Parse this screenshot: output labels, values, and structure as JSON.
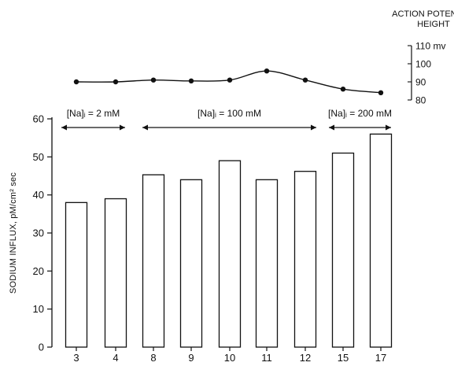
{
  "chart_data": [
    {
      "type": "bar",
      "categories": [
        "3",
        "4",
        "8",
        "9",
        "10",
        "11",
        "12",
        "15",
        "17"
      ],
      "values": [
        38,
        39,
        45.3,
        44,
        49,
        44,
        46.2,
        51,
        56
      ],
      "ylabel": "SODIUM INFLUX, pM/cm² sec",
      "xlabel": "",
      "yticks": [
        "0",
        "10",
        "20",
        "30",
        "40",
        "50",
        "60"
      ],
      "ylim": [
        0,
        60
      ],
      "bar_fill": "#ffffff",
      "stroke": "#111111",
      "grid": false,
      "ranges": [
        {
          "label": "[Na]ᵢ = 2 mM",
          "from": "3",
          "to": "4"
        },
        {
          "label": "[Na]ᵢ = 100 mM",
          "from": "8",
          "to": "12"
        },
        {
          "label": "[Na]ᵢ = 200 mM",
          "from": "15",
          "to": "17"
        }
      ]
    },
    {
      "type": "line",
      "title_lines": [
        "ACTION POTENTIAL",
        "HEIGHT"
      ],
      "categories": [
        "3",
        "4",
        "8",
        "9",
        "10",
        "11",
        "12",
        "15",
        "17"
      ],
      "values": [
        90,
        90,
        91,
        90.5,
        91,
        96,
        91,
        86,
        84
      ],
      "yticks": [
        "110 mv",
        "100",
        "90",
        "80"
      ],
      "ylim": [
        80,
        110
      ],
      "marker": "filled-circle",
      "smooth": true
    }
  ]
}
